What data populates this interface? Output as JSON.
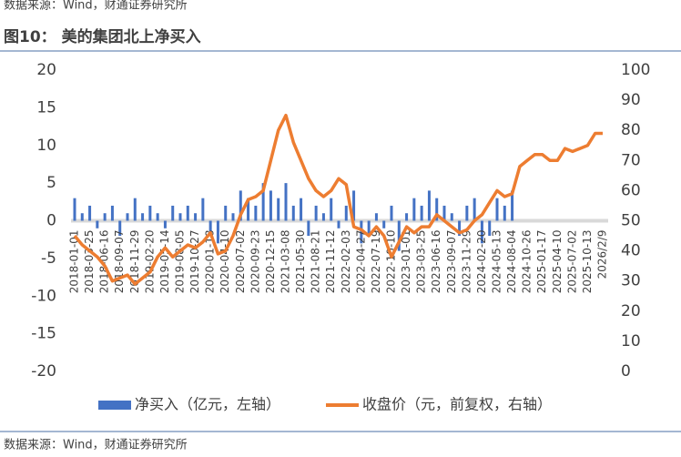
{
  "source_top": "数据来源：Wind，财通证券研究所",
  "chart_data": {
    "type": "bar-line",
    "title": "图10：   美的集团北上净买入",
    "categories": [
      "2018-01-01",
      null,
      "2018-03-25",
      null,
      "2018-06-16",
      null,
      "2018-09-07",
      null,
      "2018-11-29",
      null,
      "2019-02-20",
      null,
      "2019-05-14",
      null,
      "2019-08-05",
      null,
      "2019-10-27",
      null,
      "2020-01-18",
      null,
      "2020-04-10",
      null,
      "2020-07-02",
      null,
      "2020-09-23",
      null,
      "2020-12-15",
      null,
      "2021-03-08",
      null,
      "2021-05-30",
      null,
      "2021-08-21",
      null,
      "2021-11-12",
      null,
      "2022-02-03",
      null,
      "2022-04-27",
      null,
      "2022-07-19",
      null,
      "2022-10-10",
      null,
      "2023-01-01",
      null,
      "2023-03-25",
      null,
      "2023-06-16",
      null,
      "2023-09-07",
      null,
      "2023-11-29",
      null,
      "2024-02-20",
      null,
      "2024-05-13",
      null,
      "2024-08-04",
      null,
      "2024-10-26",
      null,
      "2025-01-17",
      null,
      "2025-04-10",
      null,
      "2025-07-02",
      null,
      "2025-10-13",
      null,
      "2026/2/9"
    ],
    "series": [
      {
        "name": "净买入（亿元，左轴）",
        "type": "bar",
        "color": "#4472c4",
        "values": [
          3,
          1,
          2,
          -1,
          1,
          2,
          -2,
          1,
          3,
          1,
          2,
          1,
          -1,
          2,
          1,
          2,
          1,
          3,
          -2,
          -3,
          2,
          1,
          4,
          3,
          2,
          5,
          4,
          3,
          5,
          2,
          3,
          -2,
          2,
          1,
          3,
          -1,
          2,
          4,
          -3,
          -2,
          1,
          -1,
          2,
          -4,
          1,
          3,
          2,
          4,
          3,
          2,
          1,
          -2,
          2,
          3,
          -3,
          -2,
          3,
          2,
          4,
          null,
          null,
          null,
          null,
          null,
          null,
          null,
          null,
          null,
          null,
          null,
          null
        ]
      },
      {
        "name": "收盘价（元，前复权，右轴）",
        "type": "line",
        "axis": "y2",
        "color": "#ed7d31",
        "values": [
          45,
          42,
          40,
          38,
          35,
          30,
          31,
          32,
          29,
          31,
          33,
          38,
          41,
          38,
          40,
          42,
          41,
          43,
          46,
          39,
          40,
          45,
          52,
          57,
          58,
          60,
          70,
          80,
          85,
          76,
          70,
          64,
          60,
          58,
          60,
          64,
          62,
          48,
          47,
          45,
          48,
          45,
          38,
          43,
          48,
          46,
          48,
          48,
          52,
          50,
          48,
          46,
          47,
          50,
          52,
          56,
          60,
          58,
          59,
          68,
          70,
          72,
          72,
          70,
          70,
          74,
          73,
          74,
          75,
          79,
          79
        ]
      }
    ],
    "ylim": [
      -20,
      20
    ],
    "yticks": [
      -20,
      -15,
      -10,
      -5,
      0,
      5,
      10,
      15,
      20
    ],
    "y2lim": [
      0,
      100
    ],
    "y2ticks": [
      0,
      10,
      20,
      30,
      40,
      50,
      60,
      70,
      80,
      90,
      100
    ],
    "legend": "bottom",
    "source": "数据来源：Wind，财通证券研究所"
  }
}
